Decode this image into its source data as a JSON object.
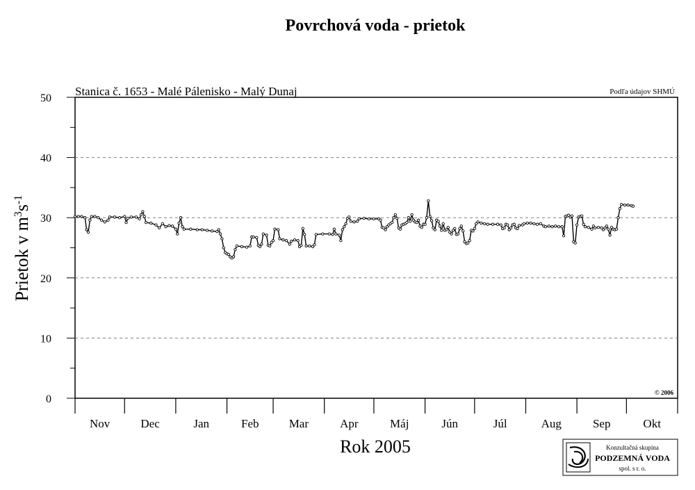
{
  "chart_data": {
    "type": "line",
    "title": "Povrchová voda - prietok",
    "subtitle": "Stanica č. 1653 - Malé Pálenisko - Malý Dunaj",
    "source": "Podľa údajov SHMÚ",
    "copyright": "© 2006",
    "xlabel": "Rok 2005",
    "ylabel": {
      "main": "Prietok v m",
      "sup1": "3",
      "mid": "s",
      "sup2": "-1"
    },
    "ylim": [
      0,
      50
    ],
    "yticks": [
      "0",
      "10",
      "20",
      "30",
      "40",
      "50"
    ],
    "grid": "dashed horizontal at 10, 20, 30, 40",
    "months": [
      "Nov",
      "Dec",
      "Jan",
      "Feb",
      "Mar",
      "Apr",
      "Máj",
      "Jún",
      "Júl",
      "Aug",
      "Sep",
      "Okt"
    ],
    "x_unit": "day index from start of November (0 = 1 Nov)",
    "series": [
      {
        "values": [
          [
            0,
            30.2
          ],
          [
            2,
            30.2
          ],
          [
            4,
            30.2
          ],
          [
            6,
            30.0
          ],
          [
            7,
            28.0
          ],
          [
            8,
            27.6
          ],
          [
            9,
            29.6
          ],
          [
            10,
            30.2
          ],
          [
            12,
            30.2
          ],
          [
            14,
            30.0
          ],
          [
            16,
            29.6
          ],
          [
            18,
            29.3
          ],
          [
            20,
            29.6
          ],
          [
            21,
            30.1
          ],
          [
            24,
            30.1
          ],
          [
            27,
            30.0
          ],
          [
            30,
            30.2
          ],
          [
            31,
            29.2
          ],
          [
            32,
            29.9
          ],
          [
            34,
            30.1
          ],
          [
            37,
            30.1
          ],
          [
            39,
            29.8
          ],
          [
            40,
            30.5
          ],
          [
            41,
            31.0
          ],
          [
            42,
            30.2
          ],
          [
            43,
            29.2
          ],
          [
            46,
            29.1
          ],
          [
            49,
            28.8
          ],
          [
            51,
            28.3
          ],
          [
            53,
            29.0
          ],
          [
            55,
            28.5
          ],
          [
            57,
            28.7
          ],
          [
            59,
            28.6
          ],
          [
            61,
            28.1
          ],
          [
            62,
            27.3
          ],
          [
            63,
            29.1
          ],
          [
            64,
            30.0
          ],
          [
            65,
            28.5
          ],
          [
            66,
            28.1
          ],
          [
            70,
            28.1
          ],
          [
            74,
            28.0
          ],
          [
            77,
            28.0
          ],
          [
            80,
            27.9
          ],
          [
            83,
            27.8
          ],
          [
            86,
            27.7
          ],
          [
            87,
            28.0
          ],
          [
            88,
            27.3
          ],
          [
            89,
            26.5
          ],
          [
            90,
            25.0
          ],
          [
            91,
            24.2
          ],
          [
            92,
            24.0
          ],
          [
            93,
            23.9
          ],
          [
            94,
            23.5
          ],
          [
            95,
            23.3
          ],
          [
            96,
            23.5
          ],
          [
            97,
            24.7
          ],
          [
            98,
            25.3
          ],
          [
            101,
            25.2
          ],
          [
            104,
            25.1
          ],
          [
            106,
            25.3
          ],
          [
            107,
            26.8
          ],
          [
            108,
            26.8
          ],
          [
            110,
            26.7
          ],
          [
            111,
            25.4
          ],
          [
            112,
            25.2
          ],
          [
            113,
            25.6
          ],
          [
            114,
            27.3
          ],
          [
            116,
            27.1
          ],
          [
            117,
            25.4
          ],
          [
            118,
            25.3
          ],
          [
            119,
            25.9
          ],
          [
            120,
            26.2
          ],
          [
            121,
            28.1
          ],
          [
            123,
            28.0
          ],
          [
            124,
            26.5
          ],
          [
            126,
            26.3
          ],
          [
            128,
            26.2
          ],
          [
            130,
            25.6
          ],
          [
            131,
            26.1
          ],
          [
            133,
            26.3
          ],
          [
            135,
            26.2
          ],
          [
            136,
            25.2
          ],
          [
            137,
            25.4
          ],
          [
            138,
            28.2
          ],
          [
            139,
            27.2
          ],
          [
            140,
            25.3
          ],
          [
            142,
            25.3
          ],
          [
            144,
            25.2
          ],
          [
            145,
            25.5
          ],
          [
            146,
            27.2
          ],
          [
            150,
            27.3
          ],
          [
            154,
            27.3
          ],
          [
            156,
            27.2
          ],
          [
            157,
            28.1
          ],
          [
            158,
            27.3
          ],
          [
            160,
            27.1
          ],
          [
            161,
            26.2
          ],
          [
            162,
            28.0
          ],
          [
            163,
            28.5
          ],
          [
            164,
            29.0
          ],
          [
            165,
            29.9
          ],
          [
            166,
            30.1
          ],
          [
            167,
            29.4
          ],
          [
            169,
            29.3
          ],
          [
            171,
            29.4
          ],
          [
            172,
            29.8
          ],
          [
            175,
            29.9
          ],
          [
            178,
            29.8
          ],
          [
            181,
            29.8
          ],
          [
            184,
            29.8
          ],
          [
            185,
            29.6
          ],
          [
            186,
            28.4
          ],
          [
            187,
            28.3
          ],
          [
            188,
            28.0
          ],
          [
            189,
            28.5
          ],
          [
            190,
            28.8
          ],
          [
            191,
            29.0
          ],
          [
            192,
            29.2
          ],
          [
            193,
            30.0
          ],
          [
            194,
            30.5
          ],
          [
            195,
            29.9
          ],
          [
            196,
            28.3
          ],
          [
            197,
            28.1
          ],
          [
            198,
            28.8
          ],
          [
            199,
            28.9
          ],
          [
            200,
            29.0
          ],
          [
            201,
            29.2
          ],
          [
            202,
            30.0
          ],
          [
            203,
            29.4
          ],
          [
            204,
            30.5
          ],
          [
            205,
            29.6
          ],
          [
            206,
            29.3
          ],
          [
            207,
            29.2
          ],
          [
            208,
            29.6
          ],
          [
            209,
            28.6
          ],
          [
            210,
            28.4
          ],
          [
            211,
            28.9
          ],
          [
            212,
            28.9
          ],
          [
            213,
            30.0
          ],
          [
            214,
            32.8
          ],
          [
            215,
            30.2
          ],
          [
            216,
            29.5
          ],
          [
            217,
            28.3
          ],
          [
            218,
            28.0
          ],
          [
            219,
            29.6
          ],
          [
            220,
            29.4
          ],
          [
            221,
            28.6
          ],
          [
            222,
            27.9
          ],
          [
            223,
            29.0
          ],
          [
            224,
            27.9
          ],
          [
            225,
            28.0
          ],
          [
            226,
            28.4
          ],
          [
            227,
            27.6
          ],
          [
            228,
            27.3
          ],
          [
            229,
            27.9
          ],
          [
            230,
            28.2
          ],
          [
            231,
            27.2
          ],
          [
            232,
            27.3
          ],
          [
            233,
            28.2
          ],
          [
            234,
            28.6
          ],
          [
            235,
            27.8
          ],
          [
            236,
            26.0
          ],
          [
            237,
            25.7
          ],
          [
            238,
            25.8
          ],
          [
            239,
            26.2
          ],
          [
            240,
            27.9
          ],
          [
            241,
            27.8
          ],
          [
            242,
            28.2
          ],
          [
            243,
            29.0
          ],
          [
            244,
            29.3
          ],
          [
            246,
            29.1
          ],
          [
            248,
            29.0
          ],
          [
            250,
            28.9
          ],
          [
            253,
            28.9
          ],
          [
            256,
            28.9
          ],
          [
            258,
            28.8
          ],
          [
            259,
            28.2
          ],
          [
            260,
            28.3
          ],
          [
            261,
            28.9
          ],
          [
            262,
            28.8
          ],
          [
            263,
            28.0
          ],
          [
            264,
            28.3
          ],
          [
            265,
            28.8
          ],
          [
            266,
            28.9
          ],
          [
            267,
            28.3
          ],
          [
            268,
            28.2
          ],
          [
            269,
            28.7
          ],
          [
            271,
            28.8
          ],
          [
            272,
            29.0
          ],
          [
            274,
            29.1
          ],
          [
            276,
            29.1
          ],
          [
            278,
            29.0
          ],
          [
            280,
            28.9
          ],
          [
            282,
            29.0
          ],
          [
            284,
            28.6
          ],
          [
            285,
            28.5
          ],
          [
            287,
            28.6
          ],
          [
            289,
            28.5
          ],
          [
            291,
            28.6
          ],
          [
            293,
            28.5
          ],
          [
            295,
            28.5
          ],
          [
            296,
            27.0
          ],
          [
            297,
            30.2
          ],
          [
            298,
            30.3
          ],
          [
            299,
            30.4
          ],
          [
            300,
            30.1
          ],
          [
            301,
            30.3
          ],
          [
            302,
            26.0
          ],
          [
            303,
            25.8
          ],
          [
            304,
            28.8
          ],
          [
            305,
            30.1
          ],
          [
            306,
            30.2
          ],
          [
            307,
            30.3
          ],
          [
            308,
            28.9
          ],
          [
            309,
            28.5
          ],
          [
            311,
            28.4
          ],
          [
            313,
            28.1
          ],
          [
            314,
            28.6
          ],
          [
            315,
            28.3
          ],
          [
            317,
            28.4
          ],
          [
            319,
            28.3
          ],
          [
            320,
            28.0
          ],
          [
            321,
            28.3
          ],
          [
            322,
            28.6
          ],
          [
            323,
            28.1
          ],
          [
            324,
            27.1
          ],
          [
            325,
            28.4
          ],
          [
            326,
            28.1
          ],
          [
            327,
            28.0
          ],
          [
            328,
            28.1
          ],
          [
            329,
            30.0
          ],
          [
            330,
            31.5
          ],
          [
            331,
            32.2
          ],
          [
            333,
            32.1
          ],
          [
            335,
            32.1
          ],
          [
            337,
            32.0
          ],
          [
            338,
            31.9
          ]
        ]
      }
    ]
  },
  "logo": {
    "line1": "Konzultačná skupina",
    "line2": "PODZEMNÁ VODA",
    "line3": "spol. s r. o."
  }
}
